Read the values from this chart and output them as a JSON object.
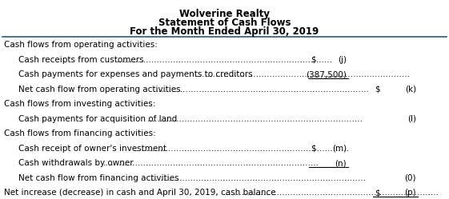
{
  "title1": "Wolverine Realty",
  "title2": "Statement of Cash Flows",
  "title3": "For the Month Ended April 30, 2019",
  "rows": [
    {
      "text": "Cash flows from operating activities:",
      "dots": false,
      "indent": 0,
      "col1": "",
      "col2": "",
      "dollar1": false,
      "dollar2": false,
      "underline_col1": false,
      "underline_col2": false
    },
    {
      "text": "Cash receipts from customers ",
      "dots": true,
      "indent": 1,
      "col1": "(j)",
      "col2": "",
      "dollar1": true,
      "dollar2": false,
      "underline_col1": false,
      "underline_col2": false
    },
    {
      "text": "Cash payments for expenses and payments to creditors",
      "dots": true,
      "indent": 1,
      "col1": "(387,500)",
      "col2": "",
      "dollar1": false,
      "dollar2": false,
      "underline_col1": true,
      "underline_col2": false
    },
    {
      "text": "Net cash flow from operating activities ",
      "dots": true,
      "indent": 1,
      "col1": "",
      "col2": "(k)",
      "dollar1": false,
      "dollar2": true,
      "underline_col1": false,
      "underline_col2": false
    },
    {
      "text": "Cash flows from investing activities:",
      "dots": false,
      "indent": 0,
      "col1": "",
      "col2": "",
      "dollar1": false,
      "dollar2": false,
      "underline_col1": false,
      "underline_col2": false
    },
    {
      "text": "Cash payments for acquisition of land ",
      "dots": true,
      "indent": 1,
      "col1": "",
      "col2": "(l)",
      "dollar1": false,
      "dollar2": false,
      "underline_col1": false,
      "underline_col2": false
    },
    {
      "text": "Cash flows from financing activities:",
      "dots": false,
      "indent": 0,
      "col1": "",
      "col2": "",
      "dollar1": false,
      "dollar2": false,
      "underline_col1": false,
      "underline_col2": false
    },
    {
      "text": "Cash receipt of owner's investment",
      "dots": true,
      "indent": 1,
      "col1": "(m)",
      "col2": "",
      "dollar1": true,
      "dollar2": false,
      "underline_col1": false,
      "underline_col2": false
    },
    {
      "text": "Cash withdrawals by owner",
      "dots": true,
      "indent": 1,
      "col1": "(n)",
      "col2": "",
      "dollar1": false,
      "dollar2": false,
      "underline_col1": true,
      "underline_col2": false
    },
    {
      "text": "Net cash flow from financing activities",
      "dots": true,
      "indent": 1,
      "col1": "",
      "col2": "(0)",
      "dollar1": false,
      "dollar2": false,
      "underline_col1": false,
      "underline_col2": false
    },
    {
      "text": "Net increase (decrease) in cash and April 30, 2019, cash balance ",
      "dots": true,
      "indent": 0,
      "col1": "",
      "col2": "(p)",
      "dollar1": false,
      "dollar2": true,
      "underline_col1": false,
      "underline_col2": true
    }
  ],
  "bg_color": "#ffffff",
  "text_color": "#000000",
  "line_color": "#000000",
  "header_line_color": "#1f4e79",
  "fontsize": 7.5,
  "title_fontsize": 8.5
}
